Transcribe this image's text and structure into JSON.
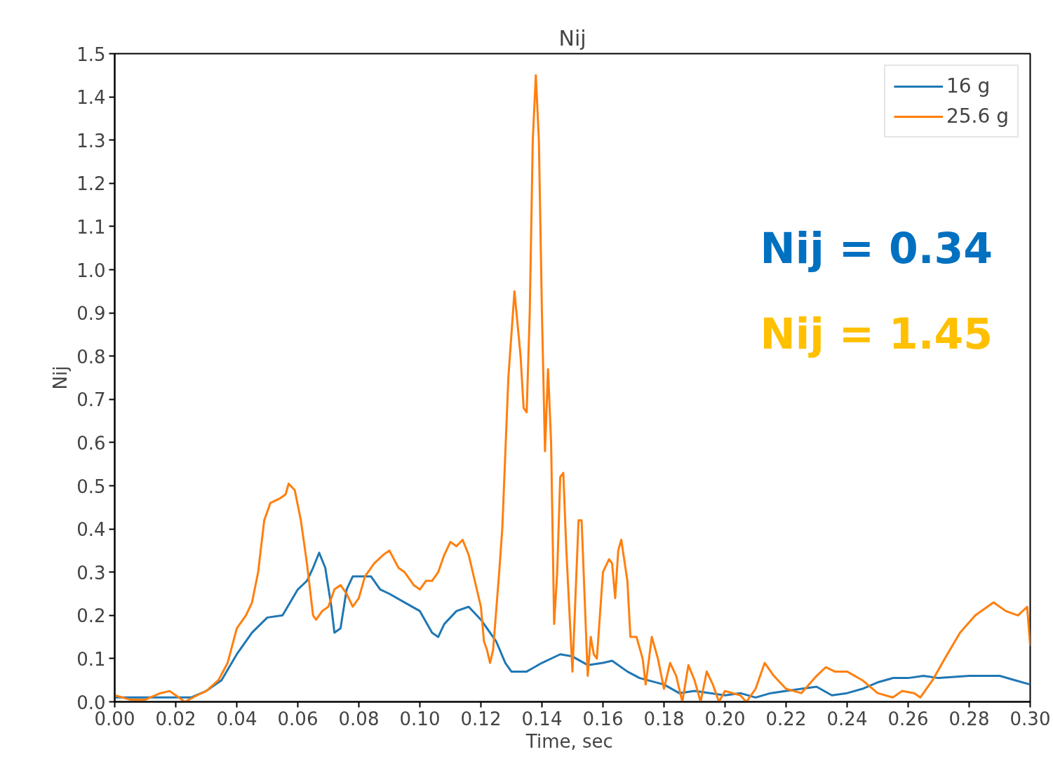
{
  "chart_data": {
    "type": "line",
    "title": "Nij",
    "xlabel": "Time,  sec",
    "ylabel": "Nij",
    "xlim": [
      0,
      0.3
    ],
    "ylim": [
      0,
      1.5
    ],
    "xticks": [
      {
        "value": 0,
        "label": "0.00"
      },
      {
        "value": 0.02,
        "label": "0.02"
      },
      {
        "value": 0.04,
        "label": "0.04"
      },
      {
        "value": 0.06,
        "label": "0.06"
      },
      {
        "value": 0.08,
        "label": "0.08"
      },
      {
        "value": 0.1,
        "label": "0.10"
      },
      {
        "value": 0.12,
        "label": "0.12"
      },
      {
        "value": 0.14,
        "label": "0.14"
      },
      {
        "value": 0.16,
        "label": "0.16"
      },
      {
        "value": 0.18,
        "label": "0.18"
      },
      {
        "value": 0.2,
        "label": "0.20"
      },
      {
        "value": 0.22,
        "label": "0.22"
      },
      {
        "value": 0.24,
        "label": "0.24"
      },
      {
        "value": 0.26,
        "label": "0.26"
      },
      {
        "value": 0.28,
        "label": "0.28"
      },
      {
        "value": 0.3,
        "label": "0.30"
      }
    ],
    "yticks": [
      {
        "value": 0,
        "label": "0.0"
      },
      0.1,
      0.2,
      0.3,
      0.4,
      0.5,
      0.6,
      0.7,
      0.8,
      0.9,
      {
        "value": 1,
        "label": "1.0"
      },
      1.1,
      1.2,
      1.3,
      1.4,
      1.5
    ],
    "grid": false,
    "legend": "top right",
    "line_style": "solid",
    "annotations": [
      "Nij = 0.34",
      "Nij = 1.45"
    ],
    "series": [
      {
        "name": "16 g",
        "color": "#1f77b4",
        "x": [
          0,
          0.01,
          0.02,
          0.025,
          0.03,
          0.035,
          0.04,
          0.045,
          0.05,
          0.055,
          0.06,
          0.063,
          0.065,
          0.067,
          0.069,
          0.071,
          0.072,
          0.074,
          0.076,
          0.078,
          0.08,
          0.084,
          0.087,
          0.09,
          0.095,
          0.1,
          0.104,
          0.106,
          0.108,
          0.112,
          0.116,
          0.12,
          0.125,
          0.128,
          0.13,
          0.135,
          0.14,
          0.146,
          0.15,
          0.155,
          0.16,
          0.163,
          0.168,
          0.172,
          0.18,
          0.185,
          0.19,
          0.2,
          0.205,
          0.21,
          0.215,
          0.22,
          0.23,
          0.235,
          0.24,
          0.245,
          0.25,
          0.255,
          0.26,
          0.265,
          0.27,
          0.28,
          0.29,
          0.295,
          0.3
        ],
        "values": [
          0.01,
          0.01,
          0.01,
          0.01,
          0.025,
          0.05,
          0.11,
          0.16,
          0.195,
          0.2,
          0.26,
          0.28,
          0.31,
          0.345,
          0.31,
          0.22,
          0.16,
          0.17,
          0.26,
          0.29,
          0.29,
          0.29,
          0.26,
          0.25,
          0.23,
          0.21,
          0.16,
          0.15,
          0.18,
          0.21,
          0.22,
          0.19,
          0.14,
          0.09,
          0.07,
          0.07,
          0.09,
          0.11,
          0.105,
          0.085,
          0.09,
          0.095,
          0.07,
          0.055,
          0.04,
          0.02,
          0.025,
          0.015,
          0.02,
          0.01,
          0.02,
          0.025,
          0.035,
          0.015,
          0.02,
          0.03,
          0.045,
          0.055,
          0.055,
          0.06,
          0.055,
          0.06,
          0.06,
          0.05,
          0.04
        ]
      },
      {
        "name": "25.6 g",
        "color": "#ff7f0e",
        "x": [
          0,
          0.005,
          0.01,
          0.015,
          0.018,
          0.02,
          0.023,
          0.027,
          0.03,
          0.034,
          0.037,
          0.04,
          0.043,
          0.045,
          0.047,
          0.049,
          0.051,
          0.054,
          0.056,
          0.057,
          0.059,
          0.061,
          0.063,
          0.065,
          0.066,
          0.068,
          0.07,
          0.072,
          0.074,
          0.076,
          0.078,
          0.08,
          0.082,
          0.085,
          0.088,
          0.09,
          0.093,
          0.095,
          0.098,
          0.1,
          0.102,
          0.104,
          0.106,
          0.108,
          0.11,
          0.112,
          0.114,
          0.116,
          0.118,
          0.12,
          0.121,
          0.122,
          0.123,
          0.124,
          0.126,
          0.127,
          0.129,
          0.131,
          0.133,
          0.134,
          0.135,
          0.136,
          0.137,
          0.138,
          0.139,
          0.14,
          0.141,
          0.142,
          0.143,
          0.144,
          0.145,
          0.146,
          0.147,
          0.148,
          0.15,
          0.152,
          0.153,
          0.155,
          0.156,
          0.157,
          0.158,
          0.16,
          0.162,
          0.163,
          0.164,
          0.165,
          0.166,
          0.168,
          0.169,
          0.171,
          0.173,
          0.174,
          0.176,
          0.178,
          0.18,
          0.182,
          0.184,
          0.186,
          0.188,
          0.19,
          0.192,
          0.194,
          0.196,
          0.198,
          0.2,
          0.205,
          0.207,
          0.21,
          0.213,
          0.216,
          0.22,
          0.225,
          0.23,
          0.233,
          0.236,
          0.24,
          0.245,
          0.25,
          0.255,
          0.258,
          0.262,
          0.264,
          0.268,
          0.272,
          0.277,
          0.282,
          0.288,
          0.292,
          0.296,
          0.299,
          0.3
        ],
        "values": [
          0.015,
          0.005,
          0.005,
          0.02,
          0.025,
          0.015,
          0.0,
          0.015,
          0.025,
          0.05,
          0.09,
          0.17,
          0.2,
          0.23,
          0.3,
          0.42,
          0.46,
          0.47,
          0.48,
          0.505,
          0.49,
          0.42,
          0.32,
          0.2,
          0.19,
          0.21,
          0.22,
          0.26,
          0.27,
          0.25,
          0.22,
          0.24,
          0.29,
          0.32,
          0.34,
          0.35,
          0.31,
          0.3,
          0.27,
          0.26,
          0.28,
          0.28,
          0.3,
          0.34,
          0.37,
          0.36,
          0.375,
          0.34,
          0.28,
          0.22,
          0.14,
          0.12,
          0.09,
          0.12,
          0.3,
          0.4,
          0.75,
          0.95,
          0.8,
          0.68,
          0.67,
          0.9,
          1.3,
          1.45,
          1.3,
          0.9,
          0.58,
          0.77,
          0.6,
          0.18,
          0.3,
          0.52,
          0.53,
          0.35,
          0.07,
          0.42,
          0.42,
          0.06,
          0.15,
          0.11,
          0.1,
          0.3,
          0.33,
          0.32,
          0.24,
          0.35,
          0.375,
          0.28,
          0.15,
          0.15,
          0.1,
          0.04,
          0.15,
          0.1,
          0.03,
          0.09,
          0.06,
          0.0,
          0.085,
          0.05,
          0.0,
          0.07,
          0.04,
          0.0,
          0.025,
          0.015,
          0.0,
          0.03,
          0.09,
          0.06,
          0.03,
          0.02,
          0.06,
          0.08,
          0.07,
          0.07,
          0.05,
          0.02,
          0.01,
          0.025,
          0.02,
          0.01,
          0.05,
          0.1,
          0.16,
          0.2,
          0.23,
          0.21,
          0.2,
          0.22,
          0.13
        ]
      }
    ]
  }
}
